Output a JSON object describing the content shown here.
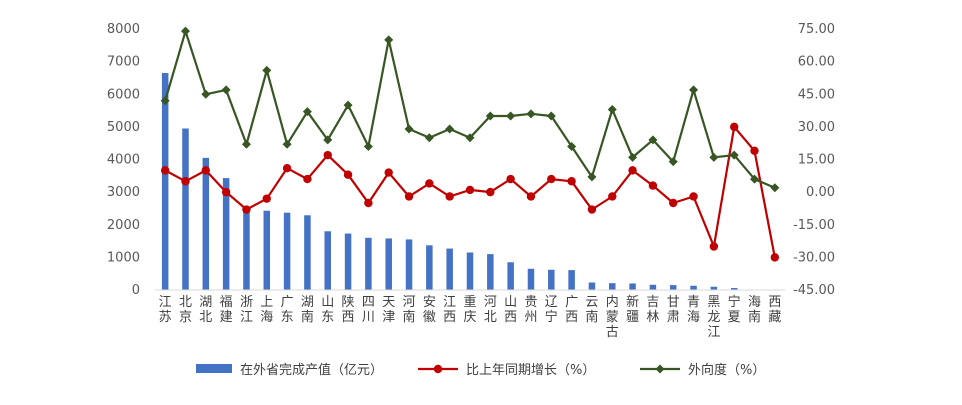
{
  "chart_data": {
    "type": "bar",
    "categories": [
      "江苏",
      "北京",
      "湖北",
      "福建",
      "浙江",
      "上海",
      "广东",
      "湖南",
      "山东",
      "陕西",
      "四川",
      "天津",
      "河南",
      "安徽",
      "江西",
      "重庆",
      "河北",
      "山西",
      "贵州",
      "辽宁",
      "广西",
      "云南",
      "内蒙古",
      "新疆",
      "吉林",
      "甘肃",
      "青海",
      "黑龙江",
      "宁夏",
      "海南",
      "西藏"
    ],
    "series": [
      {
        "name": "在外省完成产值（亿元）",
        "type": "bar",
        "axis": "left",
        "color": "#4472C4",
        "values": [
          6650,
          4950,
          4050,
          3430,
          2500,
          2430,
          2370,
          2290,
          1800,
          1730,
          1600,
          1580,
          1550,
          1370,
          1270,
          1150,
          1100,
          850,
          650,
          620,
          610,
          230,
          210,
          200,
          160,
          150,
          130,
          100,
          60,
          15,
          5
        ]
      },
      {
        "name": "比上年同期增长（%）",
        "type": "line",
        "axis": "right",
        "color": "#C00000",
        "values": [
          10,
          5,
          10,
          0,
          -8,
          -3,
          11,
          6,
          17,
          8,
          -5,
          9,
          -2,
          4,
          -2,
          1,
          0,
          6,
          -2,
          6,
          5,
          -8,
          -2,
          10,
          3,
          -5,
          -2,
          -25,
          30,
          19,
          -30
        ]
      },
      {
        "name": "外向度（%）",
        "type": "line",
        "axis": "right",
        "color": "#375623",
        "values": [
          42,
          74,
          45,
          47,
          22,
          56,
          22,
          37,
          24,
          40,
          21,
          70,
          29,
          25,
          29,
          25,
          35,
          35,
          36,
          35,
          21,
          7,
          38,
          16,
          24,
          14,
          47,
          16,
          17,
          6,
          2
        ]
      }
    ],
    "y_left": {
      "ylim": [
        0,
        8000
      ],
      "ticks": [
        "0",
        "1000",
        "2000",
        "3000",
        "4000",
        "5000",
        "6000",
        "7000",
        "8000"
      ]
    },
    "y_right": {
      "ylim": [
        -45,
        75
      ],
      "ticks": [
        "-45.00",
        "-30.00",
        "-15.00",
        "0.00",
        "15.00",
        "30.00",
        "45.00",
        "60.00",
        "75.00"
      ]
    },
    "grid": false,
    "legend": "bottom"
  }
}
